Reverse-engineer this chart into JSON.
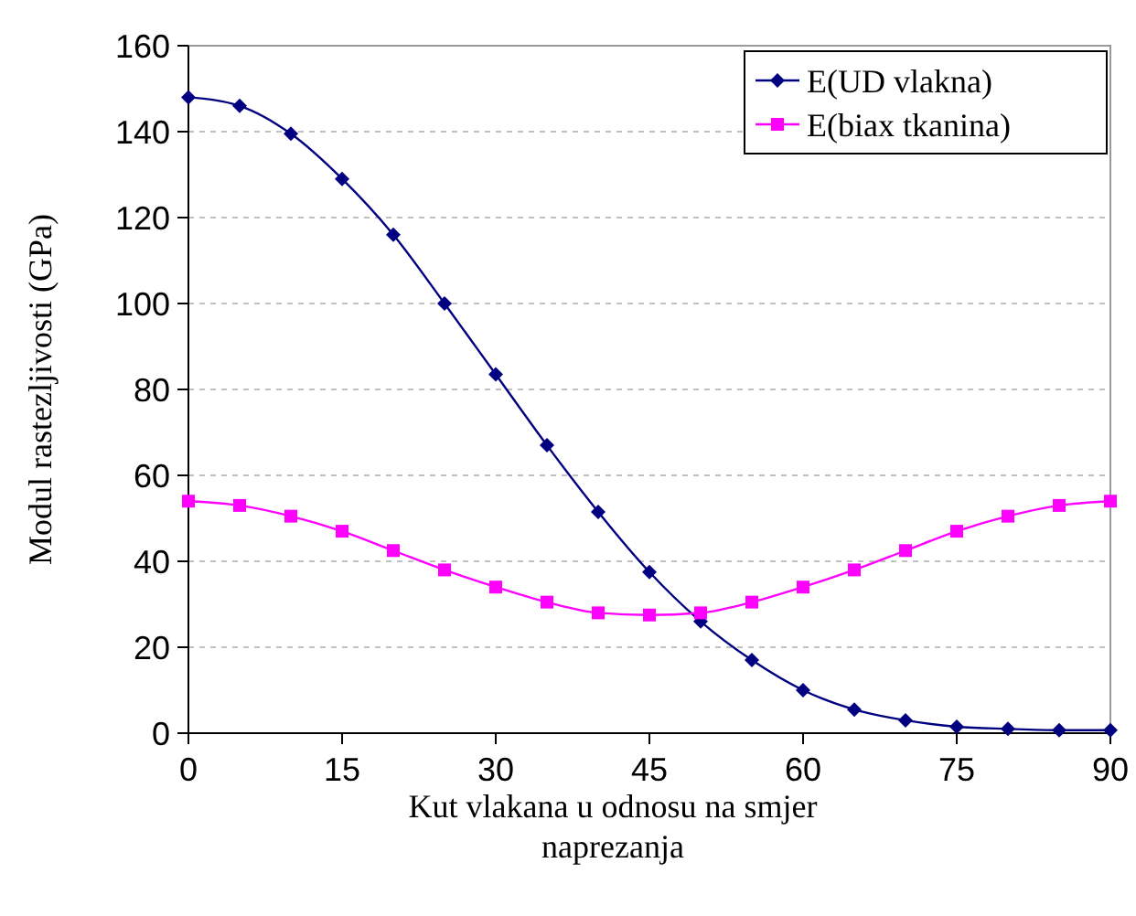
{
  "chart_data": {
    "type": "line",
    "xlabel": "Kut vlakana u odnosu na smjer naprezanja",
    "ylabel": "Modul rastezljivosti (GPa)",
    "x": [
      0,
      5,
      10,
      15,
      20,
      25,
      30,
      35,
      40,
      45,
      50,
      55,
      60,
      65,
      70,
      75,
      80,
      85,
      90
    ],
    "xlim": [
      0,
      90
    ],
    "xticks": [
      0,
      15,
      30,
      45,
      60,
      75,
      90
    ],
    "ylim": [
      0,
      160
    ],
    "yticks": [
      0,
      20,
      40,
      60,
      80,
      100,
      120,
      140,
      160
    ],
    "grid": "y",
    "legend": "top right",
    "series": [
      {
        "name": "E(UD vlakna)",
        "color": "#000080",
        "marker": "diamond",
        "values": [
          148,
          146,
          139.5,
          129,
          116,
          100,
          83.5,
          67,
          51.5,
          37.5,
          26,
          17,
          10,
          5.5,
          3,
          1.5,
          1,
          0.7,
          0.7
        ]
      },
      {
        "name": "E(biax tkanina)",
        "color": "#ff00ff",
        "marker": "square",
        "values": [
          54,
          53,
          50.5,
          47,
          42.5,
          38,
          34,
          30.5,
          28,
          27.5,
          28,
          30.5,
          34,
          38,
          42.5,
          47,
          50.5,
          53,
          54
        ]
      }
    ]
  }
}
